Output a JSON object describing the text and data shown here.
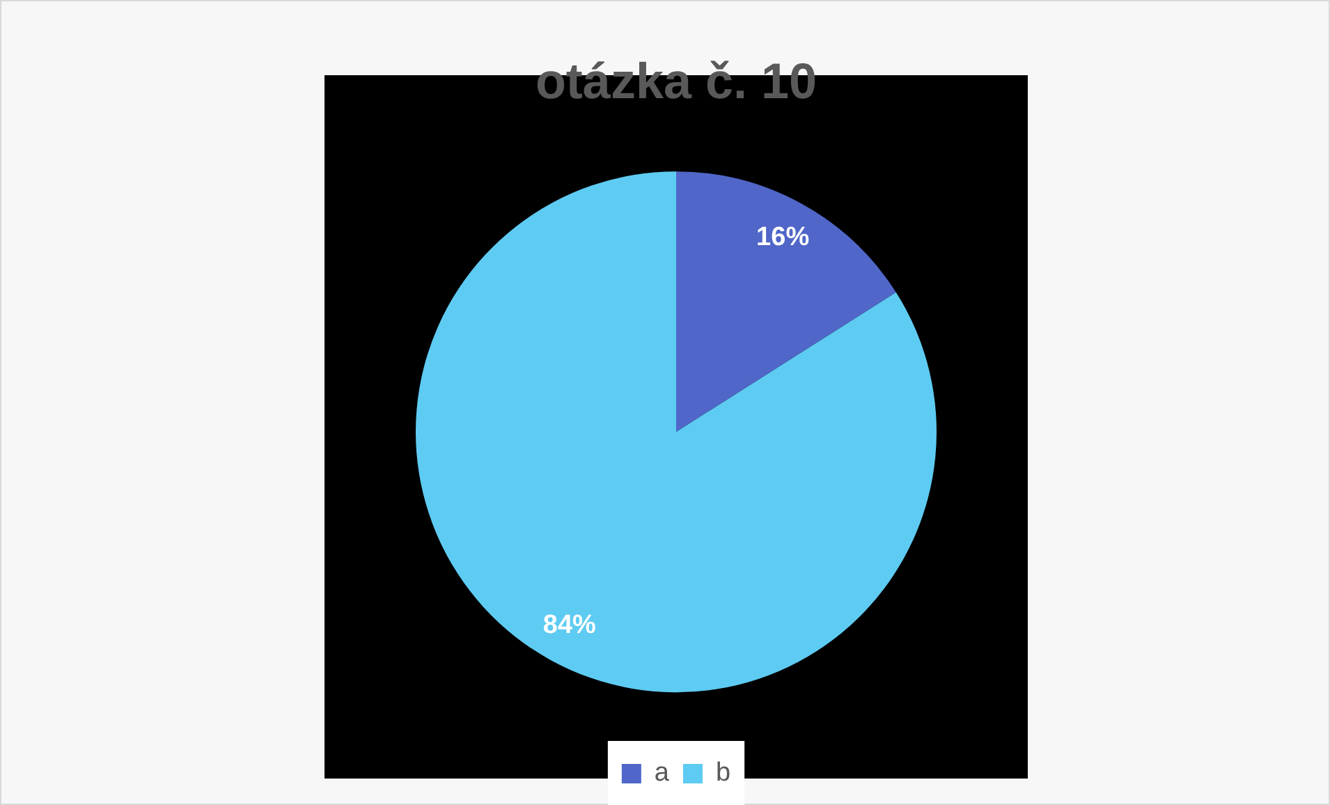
{
  "chart_data": {
    "type": "pie",
    "title": "otázka č. 10",
    "categories": [
      "a",
      "b"
    ],
    "values": [
      16,
      84
    ],
    "colors": [
      "#5066c8",
      "#5ecbf2"
    ],
    "value_labels": [
      "16%",
      "84%"
    ],
    "legend": "bottom"
  }
}
